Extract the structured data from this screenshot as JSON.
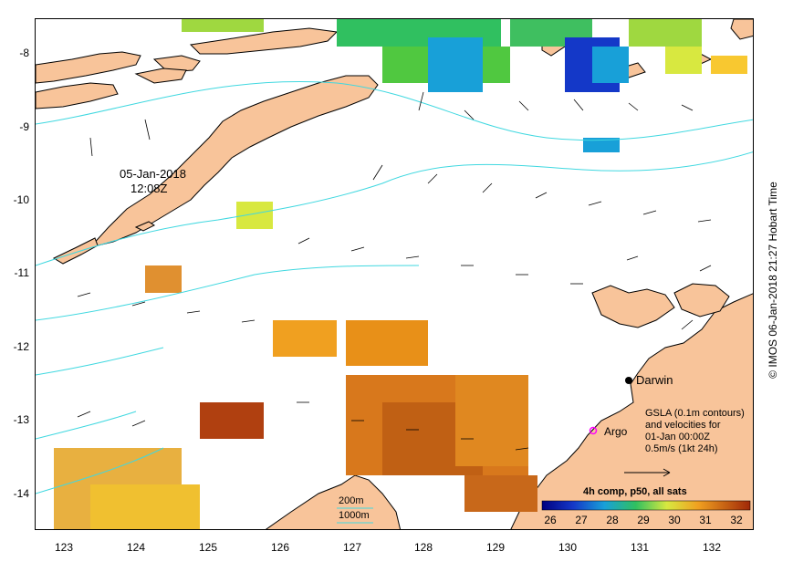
{
  "map": {
    "credit": "© IMOS 06-Jan-2018 21:27 Hobart Time",
    "date_label": "05-Jan-2018",
    "time_label": "12:08Z",
    "y_ticks": [
      "-8",
      "-9",
      "-10",
      "-11",
      "-12",
      "-13",
      "-14"
    ],
    "x_ticks": [
      "123",
      "124",
      "125",
      "126",
      "127",
      "128",
      "129",
      "130",
      "131",
      "132"
    ],
    "places": {
      "darwin": "Darwin",
      "argo": "Argo"
    },
    "legend": {
      "line1": "GSLA (0.1m contours)",
      "line2": "and velocities for",
      "line3": "01-Jan 00:00Z",
      "line4": "0.5m/s (1kt 24h)"
    },
    "contours": {
      "c200": "200m",
      "c1000": "1000m"
    },
    "colorbar": {
      "title": "4h comp, p50, all sats",
      "ticks": [
        "26",
        "27",
        "28",
        "29",
        "30",
        "31",
        "32"
      ]
    },
    "colors": {
      "land": "#f8c49a",
      "contour": "#40d8e0",
      "argo": "#ff00ff"
    }
  }
}
